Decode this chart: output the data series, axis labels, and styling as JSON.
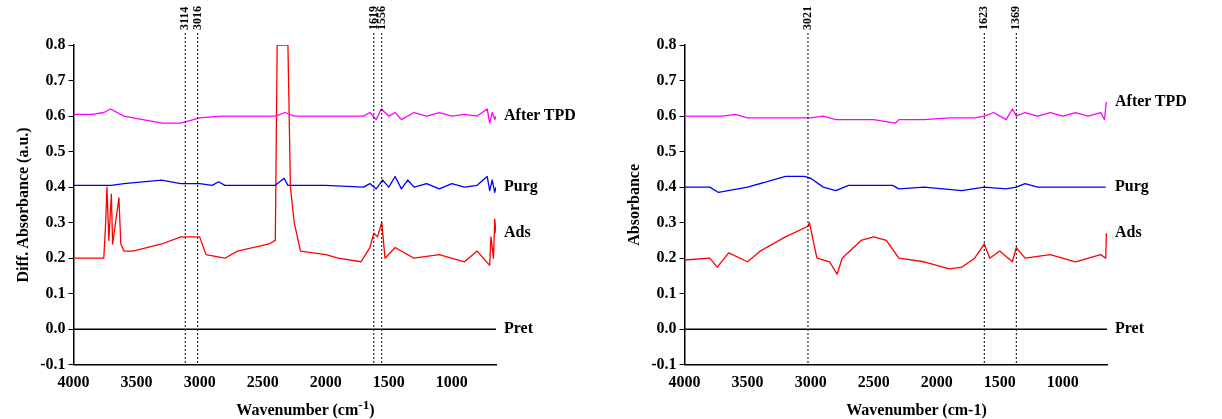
{
  "chart_data": [
    {
      "type": "line",
      "xlabel": "Wavenumber (cm$^{-1}$)",
      "ylabel": "Diff. Absorbance (a.u.)",
      "xlim": [
        4000,
        650
      ],
      "ylim": [
        -0.1,
        0.8
      ],
      "xticks": [
        4000,
        3500,
        3000,
        2500,
        2000,
        1500,
        1000
      ],
      "yticks": [
        -0.1,
        {
          "value": 0,
          "label": "0.0"
        },
        0.1,
        0.2,
        0.3,
        0.4,
        0.5,
        0.6,
        0.7,
        0.8
      ],
      "grid": false,
      "legend": false,
      "marker": "none",
      "line_style": "solid",
      "ref_lines": [
        {
          "axis": "x",
          "value": 3114,
          "label": "3114",
          "line_style": "dotted",
          "color": "#000000"
        },
        {
          "axis": "x",
          "value": 3016,
          "label": "3016",
          "line_style": "dotted",
          "color": "#000000"
        },
        {
          "axis": "x",
          "value": 1619,
          "label": "1619",
          "line_style": "dotted",
          "color": "#000000"
        },
        {
          "axis": "x",
          "value": 1556,
          "label": "1556",
          "line_style": "dotted",
          "color": "#000000"
        }
      ],
      "series": [
        {
          "name": "After TPD",
          "color": "#ff00ff",
          "x": [
            4000,
            3850,
            3760,
            3706,
            3600,
            3450,
            3294,
            3150,
            3000,
            2824,
            2600,
            2400,
            2324,
            2250,
            2000,
            1800,
            1700,
            1650,
            1600,
            1560,
            1500,
            1450,
            1400,
            1300,
            1200,
            1100,
            1000,
            900,
            800,
            720,
            700,
            680,
            660,
            650
          ],
          "values": [
            0.605,
            0.605,
            0.61,
            0.62,
            0.6,
            0.59,
            0.58,
            0.58,
            0.595,
            0.6,
            0.6,
            0.6,
            0.61,
            0.6,
            0.6,
            0.6,
            0.6,
            0.61,
            0.59,
            0.62,
            0.6,
            0.61,
            0.59,
            0.61,
            0.6,
            0.61,
            0.6,
            0.605,
            0.6,
            0.62,
            0.58,
            0.61,
            0.59,
            0.6
          ]
        },
        {
          "name": "Purg",
          "color": "#0000ff",
          "x": [
            4000,
            3700,
            3600,
            3450,
            3300,
            3150,
            3000,
            2900,
            2850,
            2800,
            2400,
            2330,
            2300,
            2000,
            1700,
            1650,
            1600,
            1550,
            1500,
            1450,
            1400,
            1350,
            1300,
            1200,
            1100,
            1000,
            900,
            800,
            720,
            700,
            680,
            660,
            650
          ],
          "values": [
            0.405,
            0.405,
            0.41,
            0.415,
            0.42,
            0.41,
            0.41,
            0.405,
            0.415,
            0.405,
            0.405,
            0.425,
            0.405,
            0.405,
            0.4,
            0.41,
            0.395,
            0.42,
            0.4,
            0.43,
            0.395,
            0.42,
            0.4,
            0.41,
            0.395,
            0.41,
            0.4,
            0.405,
            0.43,
            0.39,
            0.42,
            0.385,
            0.4
          ]
        },
        {
          "name": "Ads",
          "color": "#ff0000",
          "x": [
            4000,
            3760,
            3745,
            3735,
            3720,
            3700,
            3690,
            3640,
            3625,
            3600,
            3530,
            3300,
            3150,
            3000,
            2950,
            2800,
            2700,
            2450,
            2400,
            2385,
            2300,
            2280,
            2250,
            2200,
            2000,
            1900,
            1720,
            1650,
            1619,
            1590,
            1556,
            1530,
            1450,
            1300,
            1100,
            900,
            800,
            700,
            690,
            670,
            660,
            650
          ],
          "values": [
            0.2,
            0.2,
            0.3,
            0.4,
            0.25,
            0.38,
            0.24,
            0.37,
            0.24,
            0.22,
            0.22,
            0.24,
            0.26,
            0.26,
            0.21,
            0.2,
            0.22,
            0.24,
            0.25,
            0.8,
            0.8,
            0.4,
            0.3,
            0.22,
            0.21,
            0.2,
            0.19,
            0.23,
            0.27,
            0.26,
            0.3,
            0.2,
            0.23,
            0.2,
            0.21,
            0.19,
            0.22,
            0.18,
            0.26,
            0.2,
            0.31,
            0.27
          ]
        },
        {
          "name": "Pret",
          "color": "#000000",
          "x": [
            4000,
            650
          ],
          "values": [
            0,
            0
          ]
        }
      ]
    },
    {
      "type": "line",
      "xlabel": "Wavenumber (cm-1)",
      "ylabel": "Absorbance",
      "xlim": [
        4000,
        650
      ],
      "ylim": [
        -0.1,
        0.8
      ],
      "xticks": [
        4000,
        3500,
        3000,
        2500,
        2000,
        1500,
        1000
      ],
      "yticks": [
        -0.1,
        {
          "value": 0,
          "label": "0.0"
        },
        0.1,
        0.2,
        0.3,
        0.4,
        0.5,
        0.6,
        0.7,
        0.8
      ],
      "grid": false,
      "legend": false,
      "marker": "none",
      "line_style": "solid",
      "ref_lines": [
        {
          "axis": "x",
          "value": 3021,
          "label": "3021",
          "line_style": "dotted",
          "color": "#000000"
        },
        {
          "axis": "x",
          "value": 1623,
          "label": "1623",
          "line_style": "dotted",
          "color": "#000000"
        },
        {
          "axis": "x",
          "value": 1369,
          "label": "1369",
          "line_style": "dotted",
          "color": "#000000"
        }
      ],
      "series": [
        {
          "name": "After TPD",
          "color": "#ff00ff",
          "x": [
            4000,
            3700,
            3600,
            3500,
            3300,
            3000,
            2900,
            2800,
            2500,
            2330,
            2300,
            2100,
            1900,
            1700,
            1623,
            1550,
            1450,
            1400,
            1369,
            1300,
            1200,
            1100,
            1000,
            900,
            800,
            700,
            670,
            655
          ],
          "values": [
            0.6,
            0.6,
            0.605,
            0.595,
            0.595,
            0.595,
            0.6,
            0.59,
            0.59,
            0.58,
            0.59,
            0.59,
            0.595,
            0.595,
            0.6,
            0.61,
            0.59,
            0.62,
            0.6,
            0.61,
            0.6,
            0.61,
            0.6,
            0.61,
            0.6,
            0.61,
            0.59,
            0.64
          ]
        },
        {
          "name": "Purg",
          "color": "#0000ff",
          "x": [
            4000,
            3800,
            3730,
            3500,
            3200,
            3050,
            3000,
            2900,
            2800,
            2700,
            2350,
            2300,
            2100,
            1800,
            1623,
            1450,
            1369,
            1300,
            1200,
            1000,
            800,
            660
          ],
          "values": [
            0.4,
            0.4,
            0.385,
            0.4,
            0.43,
            0.43,
            0.425,
            0.4,
            0.39,
            0.405,
            0.405,
            0.395,
            0.4,
            0.39,
            0.4,
            0.395,
            0.4,
            0.41,
            0.4,
            0.4,
            0.4,
            0.4
          ]
        },
        {
          "name": "Ads",
          "color": "#ff0000",
          "x": [
            4000,
            3800,
            3740,
            3650,
            3500,
            3400,
            3200,
            3021,
            3010,
            2950,
            2850,
            2790,
            2750,
            2600,
            2500,
            2400,
            2300,
            2100,
            1900,
            1800,
            1700,
            1623,
            1580,
            1500,
            1400,
            1369,
            1300,
            1100,
            900,
            700,
            660,
            655
          ],
          "values": [
            0.195,
            0.2,
            0.175,
            0.215,
            0.19,
            0.22,
            0.26,
            0.29,
            0.3,
            0.2,
            0.19,
            0.155,
            0.2,
            0.25,
            0.26,
            0.25,
            0.2,
            0.19,
            0.17,
            0.175,
            0.2,
            0.24,
            0.2,
            0.22,
            0.19,
            0.23,
            0.2,
            0.21,
            0.19,
            0.21,
            0.2,
            0.27
          ]
        },
        {
          "name": "Pret",
          "color": "#000000",
          "x": [
            4000,
            650
          ],
          "values": [
            0,
            0
          ]
        }
      ]
    }
  ]
}
